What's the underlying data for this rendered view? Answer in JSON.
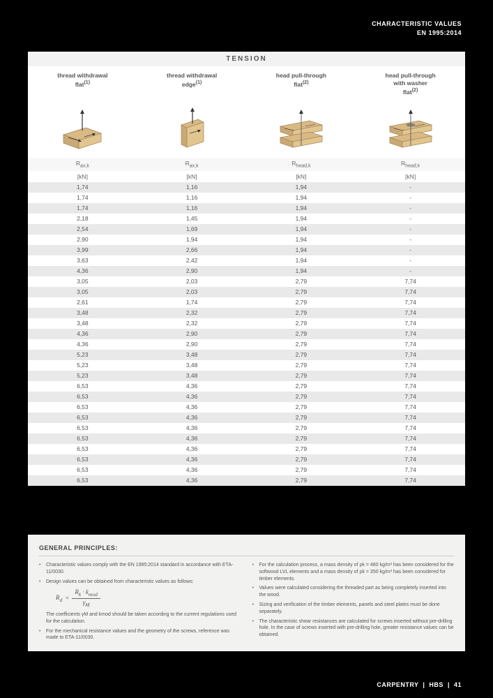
{
  "header": {
    "line1": "CHARACTERISTIC VALUES",
    "line2": "EN 1995:2014"
  },
  "table": {
    "section_title": "TENSION",
    "columns": [
      {
        "title_line1": "thread withdrawal",
        "title_line2": "flat",
        "sup": "(1)",
        "symbol_base": "R",
        "symbol_sub": "ax,k",
        "unit": "[kN]"
      },
      {
        "title_line1": "thread withdrawal",
        "title_line2": "edge",
        "sup": "(1)",
        "symbol_base": "R",
        "symbol_sub": "ax,k",
        "unit": "[kN]"
      },
      {
        "title_line1": "head pull-through",
        "title_line2": "flat",
        "sup": "(2)",
        "symbol_base": "R",
        "symbol_sub": "head,k",
        "unit": "[kN]"
      },
      {
        "title_line1": "head pull-through",
        "title_line2": "with washer",
        "title_line3": "flat",
        "sup": "(2)",
        "symbol_base": "R",
        "symbol_sub": "head,k",
        "unit": "[kN]"
      }
    ],
    "rows": [
      [
        "1,74",
        "1,16",
        "1,94",
        "-"
      ],
      [
        "1,74",
        "1,16",
        "1,94",
        "-"
      ],
      [
        "1,74",
        "1,16",
        "1,94",
        "-"
      ],
      [
        "2,18",
        "1,45",
        "1,94",
        "-"
      ],
      [
        "2,54",
        "1,69",
        "1,94",
        "-"
      ],
      [
        "2,90",
        "1,94",
        "1,94",
        "-"
      ],
      [
        "3,99",
        "2,66",
        "1,94",
        "-"
      ],
      [
        "3,63",
        "2,42",
        "1,94",
        "-"
      ],
      [
        "4,36",
        "2,90",
        "1,94",
        "-"
      ],
      [
        "3,05",
        "2,03",
        "2,79",
        "7,74"
      ],
      [
        "3,05",
        "2,03",
        "2,79",
        "7,74"
      ],
      [
        "2,61",
        "1,74",
        "2,79",
        "7,74"
      ],
      [
        "3,48",
        "2,32",
        "2,79",
        "7,74"
      ],
      [
        "3,48",
        "2,32",
        "2,79",
        "7,74"
      ],
      [
        "4,36",
        "2,90",
        "2,79",
        "7,74"
      ],
      [
        "4,36",
        "2,90",
        "2,79",
        "7,74"
      ],
      [
        "5,23",
        "3,48",
        "2,79",
        "7,74"
      ],
      [
        "5,23",
        "3,48",
        "2,79",
        "7,74"
      ],
      [
        "5,23",
        "3,48",
        "2,79",
        "7,74"
      ],
      [
        "6,53",
        "4,36",
        "2,79",
        "7,74"
      ],
      [
        "6,53",
        "4,36",
        "2,79",
        "7,74"
      ],
      [
        "6,53",
        "4,36",
        "2,79",
        "7,74"
      ],
      [
        "6,53",
        "4,36",
        "2,79",
        "7,74"
      ],
      [
        "6,53",
        "4,36",
        "2,79",
        "7,74"
      ],
      [
        "6,53",
        "4,36",
        "2,79",
        "7,74"
      ],
      [
        "6,53",
        "4,36",
        "2,79",
        "7,74"
      ],
      [
        "6,53",
        "4,36",
        "2,79",
        "7,74"
      ],
      [
        "6,53",
        "4,36",
        "2,79",
        "7,74"
      ],
      [
        "6,53",
        "4,36",
        "2,79",
        "7,74"
      ]
    ],
    "colors": {
      "light_row": "#ffffff",
      "dark_row": "#e9e9e9",
      "header_bg": "#f2f2f2",
      "wood": "#d9b984",
      "wood_edge": "#a88a5c",
      "arrow": "#333333"
    }
  },
  "principles": {
    "title": "GENERAL PRINCIPLES:",
    "left": [
      "Characteristic values comply with the EN 1995:2014 standard in accordance with ETA-11/0030.",
      "Design values can be obtained from characteristic values as follows:",
      "The coefficients γM and kmod should be taken according to the current regulations used for the calculation.",
      "For the mechanical resistance values and the geometry of the screws, reference was made to ETA-11/0030."
    ],
    "formula": {
      "lhs": "R",
      "lhs_sub": "d",
      "num1": "R",
      "num1_sub": "k",
      "num2": "k",
      "num2_sub": "mod",
      "den": "γ",
      "den_sub": "M"
    },
    "right": [
      "For the calculation process, a mass density of ρk = 480 kg/m³ has been considered for the softwood LVL elements and a mass density of ρk = 350 kg/m³ has been considered for timber elements.",
      "Values were calculated considering the threaded part as being completely inserted into the wood.",
      "Sizing and verification of the timber elements, panels and steel plates must be done separately.",
      "The characteristic shear resistances are calculated for screws inserted without pre-drilling hole. In the case of screws inserted with pre-drilling hole, greater resistance values can be obtained."
    ]
  },
  "footer": {
    "label1": "CARPENTRY",
    "label2": "HBS",
    "page": "41"
  }
}
